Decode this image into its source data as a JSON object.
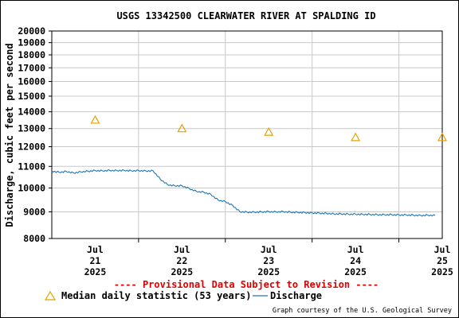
{
  "chart_data": {
    "type": "line",
    "title": "USGS 13342500 CLEARWATER RIVER AT SPALDING ID",
    "ylabel": "Discharge, cubic feet per second",
    "yscale": "log",
    "ylim": [
      8000,
      20000
    ],
    "y_ticks": [
      "20000",
      "19000",
      "18000",
      "17000",
      "16000",
      "15000",
      "14000",
      "13000",
      "12000",
      "11000",
      "10000",
      "9000",
      "8000"
    ],
    "x_range": [
      "2025-07-21T00:00",
      "2025-07-25T12:00"
    ],
    "x_ticks": [
      {
        "x": "2025-07-21T12:00",
        "month": "Jul",
        "day": "21",
        "year": "2025"
      },
      {
        "x": "2025-07-22T12:00",
        "month": "Jul",
        "day": "22",
        "year": "2025"
      },
      {
        "x": "2025-07-23T12:00",
        "month": "Jul",
        "day": "23",
        "year": "2025"
      },
      {
        "x": "2025-07-24T12:00",
        "month": "Jul",
        "day": "24",
        "year": "2025"
      },
      {
        "x": "2025-07-25T12:00",
        "month": "Jul",
        "day": "25",
        "year": "2025"
      }
    ],
    "grid": true,
    "series": [
      {
        "name": "Discharge",
        "color": "#1f77b4",
        "x": [
          "2025-07-21T00:00",
          "2025-07-21T02:00",
          "2025-07-21T04:00",
          "2025-07-21T06:00",
          "2025-07-21T08:00",
          "2025-07-21T10:00",
          "2025-07-21T12:00",
          "2025-07-21T14:00",
          "2025-07-21T16:00",
          "2025-07-21T18:00",
          "2025-07-21T20:00",
          "2025-07-21T22:00",
          "2025-07-22T00:00",
          "2025-07-22T02:00",
          "2025-07-22T04:00",
          "2025-07-22T06:00",
          "2025-07-22T08:00",
          "2025-07-22T10:00",
          "2025-07-22T12:00",
          "2025-07-22T14:00",
          "2025-07-22T16:00",
          "2025-07-22T18:00",
          "2025-07-22T20:00",
          "2025-07-22T22:00",
          "2025-07-23T00:00",
          "2025-07-23T02:00",
          "2025-07-23T04:00",
          "2025-07-23T06:00",
          "2025-07-23T08:00",
          "2025-07-23T10:00",
          "2025-07-23T12:00",
          "2025-07-23T14:00",
          "2025-07-23T16:00",
          "2025-07-23T18:00",
          "2025-07-23T20:00",
          "2025-07-23T22:00",
          "2025-07-24T00:00",
          "2025-07-24T02:00",
          "2025-07-24T04:00",
          "2025-07-24T06:00",
          "2025-07-24T08:00",
          "2025-07-24T10:00",
          "2025-07-24T12:00",
          "2025-07-24T14:00",
          "2025-07-24T16:00",
          "2025-07-24T18:00",
          "2025-07-24T20:00",
          "2025-07-24T22:00",
          "2025-07-25T00:00",
          "2025-07-25T02:00",
          "2025-07-25T04:00",
          "2025-07-25T06:00",
          "2025-07-25T08:00",
          "2025-07-25T10:00"
        ],
        "values": [
          10780,
          10720,
          10760,
          10690,
          10740,
          10770,
          10800,
          10790,
          10810,
          10800,
          10810,
          10790,
          10800,
          10780,
          10790,
          10400,
          10150,
          10100,
          10100,
          9980,
          9850,
          9820,
          9720,
          9480,
          9420,
          9260,
          9010,
          8990,
          8990,
          9000,
          9010,
          9000,
          9010,
          8990,
          8980,
          8970,
          8960,
          8950,
          8940,
          8920,
          8920,
          8910,
          8910,
          8900,
          8900,
          8890,
          8890,
          8890,
          8880,
          8880,
          8870,
          8860,
          8870,
          8860
        ]
      },
      {
        "name": "Median daily statistic (53 years)",
        "color": "#e8a000",
        "marker": "triangle",
        "x": [
          "2025-07-21T12:00",
          "2025-07-22T12:00",
          "2025-07-23T12:00",
          "2025-07-24T12:00",
          "2025-07-25T12:00"
        ],
        "values": [
          13500,
          13000,
          12800,
          12500,
          12500
        ]
      }
    ]
  },
  "notes": {
    "provisional": "---- Provisional Data Subject to Revision ----",
    "legend_median": "Median daily statistic (53 years)",
    "legend_discharge": "Discharge",
    "credit": "Graph courtesy of the U.S. Geological Survey"
  }
}
